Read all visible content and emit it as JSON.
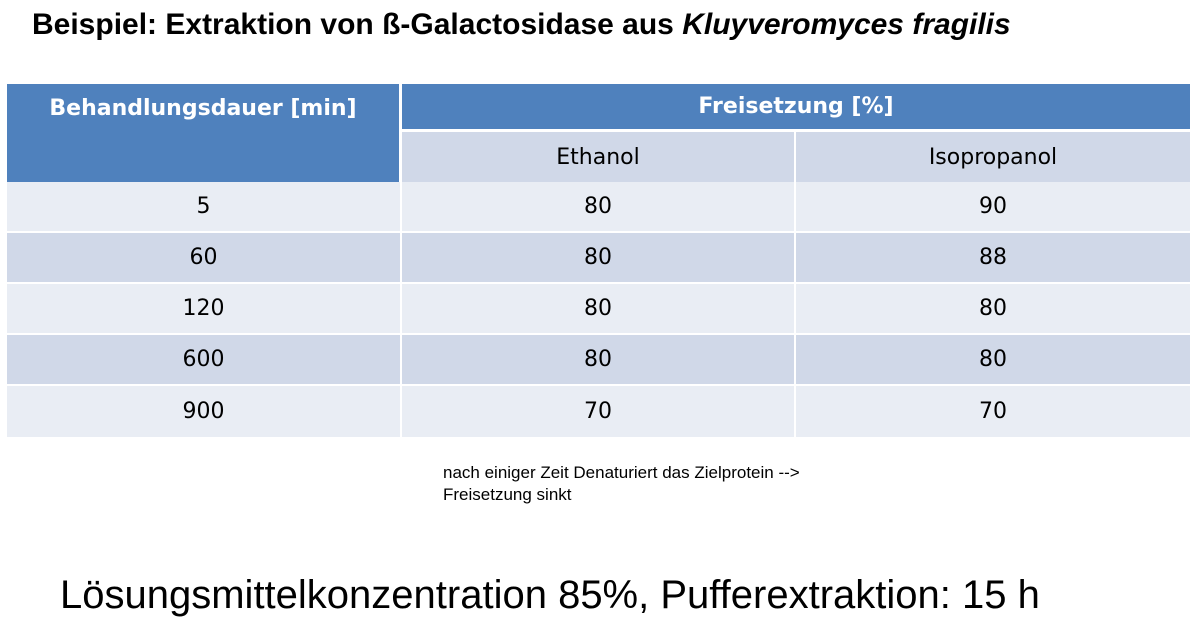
{
  "title": {
    "prefix": "Beispiel: Extraktion von ß-Galactosidase aus ",
    "italic": "Kluyveromyces fragilis"
  },
  "table": {
    "header_duration": "Behandlungsdauer [min]",
    "header_release": "Freisetzung [%]",
    "sub_ethanol": "Ethanol",
    "sub_isopropanol": "Isopropanol",
    "rows": [
      {
        "duration": "5",
        "ethanol": "80",
        "isopropanol": "90"
      },
      {
        "duration": "60",
        "ethanol": "80",
        "isopropanol": "88"
      },
      {
        "duration": "120",
        "ethanol": "80",
        "isopropanol": "80"
      },
      {
        "duration": "600",
        "ethanol": "80",
        "isopropanol": "80"
      },
      {
        "duration": "900",
        "ethanol": "70",
        "isopropanol": "70"
      }
    ]
  },
  "note": {
    "line1": "nach einiger Zeit Denaturiert das Zielprotein -->",
    "line2": "Freisetzung sinkt"
  },
  "footer": "Lösungsmittelkonzentration 85%, Pufferextraktion: 15 h",
  "colors": {
    "header_blue": "#4f81bd",
    "row_dark": "#d0d8e8",
    "row_light": "#e9edf4"
  }
}
